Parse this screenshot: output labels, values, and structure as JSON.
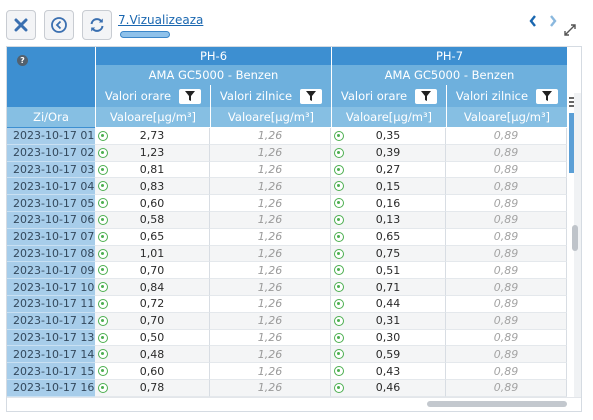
{
  "toolbar": {
    "breadcrumb": "7.Vizualizeaza",
    "buttons": [
      "close-icon",
      "back-icon",
      "refresh-icon"
    ]
  },
  "grid": {
    "help_icon": "?",
    "row_header_label": "Zi/Ora",
    "stations": [
      {
        "name": "PH-6",
        "analyzer": "AMA GC5000 - Benzen",
        "col_hourly": "Valori orare",
        "col_daily": "Valori zilnice",
        "unit_hourly": "Valoare[µg/m³]",
        "unit_daily": "Valoare[µg/m³]"
      },
      {
        "name": "PH-7",
        "analyzer": "AMA GC5000 - Benzen",
        "col_hourly": "Valori orare",
        "col_daily": "Valori zilnice",
        "unit_hourly": "Valoare[µg/m³]",
        "unit_daily": "Valoare[µg/m³]"
      }
    ],
    "rows": [
      {
        "time": "2023-10-17 01",
        "ph6_hour": "2,73",
        "ph6_day": "1,26",
        "ph7_hour": "0,35",
        "ph7_day": "0,89"
      },
      {
        "time": "2023-10-17 02",
        "ph6_hour": "1,23",
        "ph6_day": "1,26",
        "ph7_hour": "0,39",
        "ph7_day": "0,89"
      },
      {
        "time": "2023-10-17 03",
        "ph6_hour": "0,81",
        "ph6_day": "1,26",
        "ph7_hour": "0,27",
        "ph7_day": "0,89"
      },
      {
        "time": "2023-10-17 04",
        "ph6_hour": "0,83",
        "ph6_day": "1,26",
        "ph7_hour": "0,15",
        "ph7_day": "0,89"
      },
      {
        "time": "2023-10-17 05",
        "ph6_hour": "0,60",
        "ph6_day": "1,26",
        "ph7_hour": "0,16",
        "ph7_day": "0,89"
      },
      {
        "time": "2023-10-17 06",
        "ph6_hour": "0,58",
        "ph6_day": "1,26",
        "ph7_hour": "0,13",
        "ph7_day": "0,89"
      },
      {
        "time": "2023-10-17 07",
        "ph6_hour": "0,65",
        "ph6_day": "1,26",
        "ph7_hour": "0,65",
        "ph7_day": "0,89"
      },
      {
        "time": "2023-10-17 08",
        "ph6_hour": "1,01",
        "ph6_day": "1,26",
        "ph7_hour": "0,75",
        "ph7_day": "0,89"
      },
      {
        "time": "2023-10-17 09",
        "ph6_hour": "0,70",
        "ph6_day": "1,26",
        "ph7_hour": "0,51",
        "ph7_day": "0,89"
      },
      {
        "time": "2023-10-17 10",
        "ph6_hour": "0,84",
        "ph6_day": "1,26",
        "ph7_hour": "0,71",
        "ph7_day": "0,89"
      },
      {
        "time": "2023-10-17 11",
        "ph6_hour": "0,72",
        "ph6_day": "1,26",
        "ph7_hour": "0,44",
        "ph7_day": "0,89"
      },
      {
        "time": "2023-10-17 12",
        "ph6_hour": "0,70",
        "ph6_day": "1,26",
        "ph7_hour": "0,31",
        "ph7_day": "0,89"
      },
      {
        "time": "2023-10-17 13",
        "ph6_hour": "0,50",
        "ph6_day": "1,26",
        "ph7_hour": "0,30",
        "ph7_day": "0,89"
      },
      {
        "time": "2023-10-17 14",
        "ph6_hour": "0,48",
        "ph6_day": "1,26",
        "ph7_hour": "0,59",
        "ph7_day": "0,89"
      },
      {
        "time": "2023-10-17 15",
        "ph6_hour": "0,60",
        "ph6_day": "1,26",
        "ph7_hour": "0,43",
        "ph7_day": "0,89"
      },
      {
        "time": "2023-10-17 16",
        "ph6_hour": "0,78",
        "ph6_day": "1,26",
        "ph7_hour": "0,46",
        "ph7_day": "0,89"
      }
    ]
  },
  "colors": {
    "header_dark": "#3d8fd1",
    "header": "#63a8d9",
    "row_header": "#a7cdea",
    "status_ok": "#4caf50"
  }
}
